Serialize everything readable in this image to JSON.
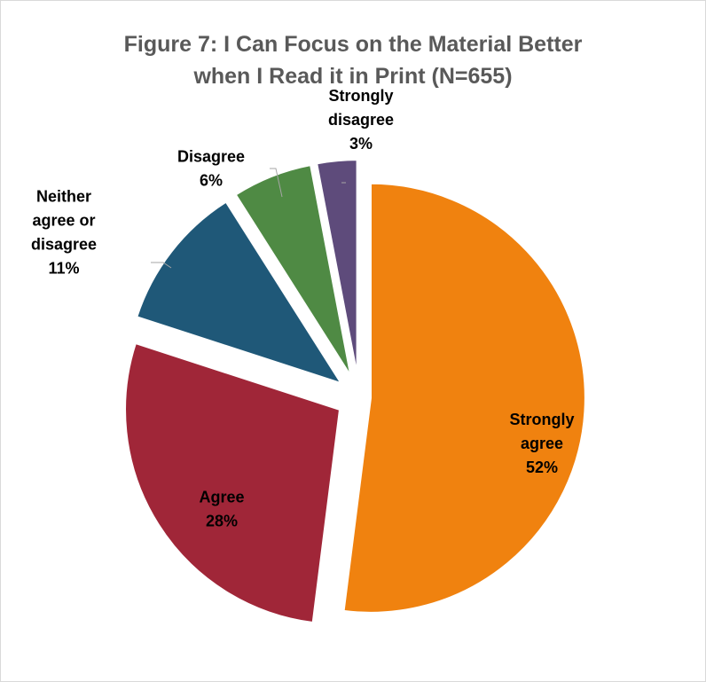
{
  "chart_data": {
    "type": "pie",
    "title": [
      "Figure 7: I Can Focus on the Material Better",
      "when I Read it in Print (N=655)"
    ],
    "slices": [
      {
        "label": [
          "Strongly",
          "agree"
        ],
        "percent_label": "52%",
        "value": 52,
        "color": "#f0820f"
      },
      {
        "label": [
          "Agree"
        ],
        "percent_label": "28%",
        "value": 28,
        "color": "#a02638"
      },
      {
        "label": [
          "Neither",
          "agree or",
          "disagree"
        ],
        "percent_label": "11%",
        "value": 11,
        "color": "#1f5878"
      },
      {
        "label": [
          "Disagree"
        ],
        "percent_label": "6%",
        "value": 6,
        "color": "#4f8a44"
      },
      {
        "label": [
          "Strongly",
          "disagree"
        ],
        "percent_label": "3%",
        "value": 3,
        "color": "#5e4b7b"
      }
    ],
    "start_angle": "top",
    "direction": "clockwise",
    "exploded": true,
    "legend": "none",
    "label_position": "data labels on or beside slices"
  }
}
